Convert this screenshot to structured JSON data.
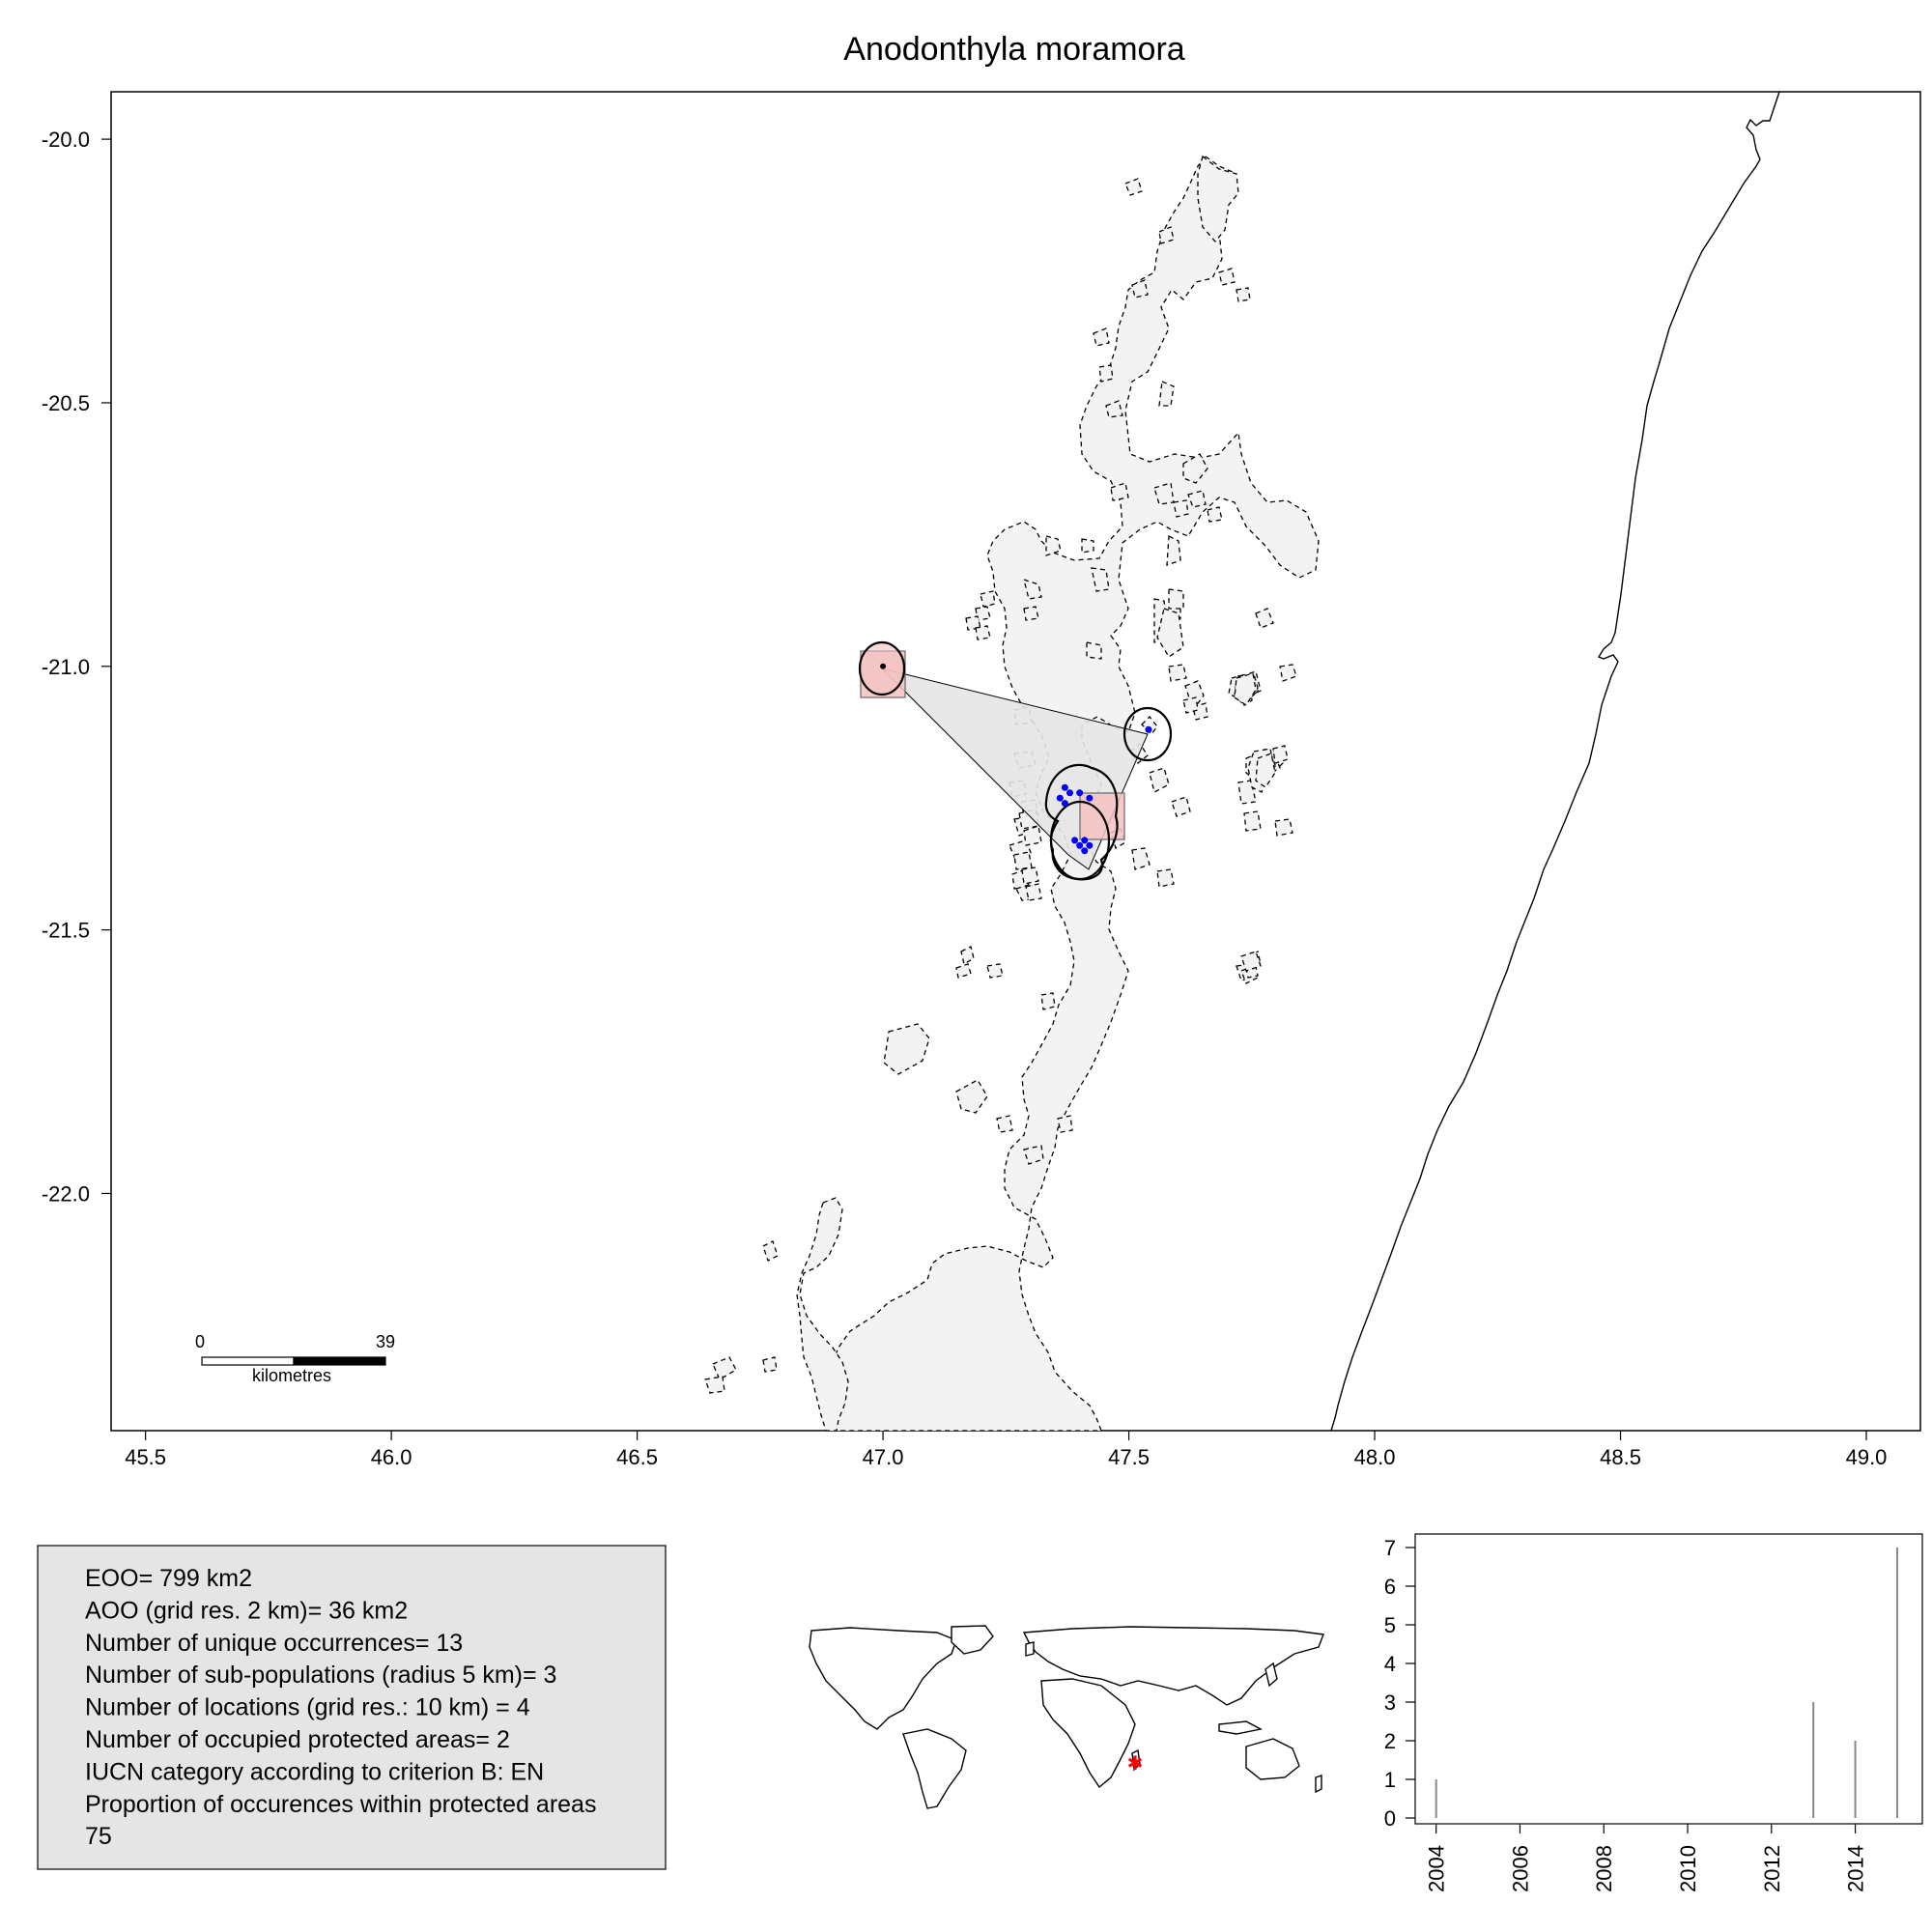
{
  "map": {
    "title": "Anodonthyla moramora",
    "x_ticks": [
      "45.5",
      "46.0",
      "46.5",
      "47.0",
      "47.5",
      "48.0",
      "48.5",
      "49.0"
    ],
    "x_tick_values": [
      45.5,
      46.0,
      46.5,
      47.0,
      47.5,
      48.0,
      48.5,
      49.0
    ],
    "y_ticks": [
      "-20.0",
      "-20.5",
      "-21.0",
      "-21.5",
      "-22.0"
    ],
    "y_tick_values": [
      -20.0,
      -20.5,
      -21.0,
      -21.5,
      -22.0
    ],
    "xlim": [
      45.43,
      49.11
    ],
    "ylim": [
      -22.45,
      -19.91
    ],
    "occurrences": [
      {
        "lon": 47.0,
        "lat": -21.0
      },
      {
        "lon": 47.54,
        "lat": -21.12
      },
      {
        "lon": 47.37,
        "lat": -21.23
      },
      {
        "lon": 47.36,
        "lat": -21.25
      },
      {
        "lon": 47.38,
        "lat": -21.24
      },
      {
        "lon": 47.4,
        "lat": -21.24
      },
      {
        "lon": 47.42,
        "lat": -21.25
      },
      {
        "lon": 47.37,
        "lat": -21.26
      },
      {
        "lon": 47.39,
        "lat": -21.33
      },
      {
        "lon": 47.41,
        "lat": -21.33
      },
      {
        "lon": 47.4,
        "lat": -21.34
      },
      {
        "lon": 47.42,
        "lat": -21.34
      },
      {
        "lon": 47.41,
        "lat": -21.35
      }
    ],
    "scale_bar": {
      "start_label": "0",
      "end_label": "39",
      "unit_label": "kilometres"
    }
  },
  "stats": {
    "lines": [
      "EOO= 799 km2",
      "AOO (grid res. 2 km)= 36 km2",
      "Number of unique occurrences= 13",
      "Number of sub-populations (radius 5 km)= 3",
      "Number of locations (grid res.: 10  km) = 4",
      "Number of occupied protected areas= 2",
      "IUCN category according to criterion B: EN",
      "Proportion of occurences within protected areas",
      "75"
    ]
  },
  "chart_data": {
    "type": "bar",
    "x": [
      2004,
      2013,
      2014,
      2015
    ],
    "values": [
      1,
      3,
      2,
      7
    ],
    "x_ticks": [
      "2004",
      "2006",
      "2008",
      "2010",
      "2012",
      "2014"
    ],
    "x_tick_values": [
      2004,
      2006,
      2008,
      2010,
      2012,
      2014
    ],
    "y_ticks": [
      "0",
      "1",
      "2",
      "3",
      "4",
      "5",
      "6",
      "7"
    ],
    "y_tick_values": [
      0,
      1,
      2,
      3,
      4,
      5,
      6,
      7
    ],
    "xlim": [
      2003.5,
      2015.6
    ],
    "ylim": [
      0,
      7.2
    ]
  },
  "colors": {
    "land_fill": "#f3f3f3",
    "hull_fill": "#e6e6e6",
    "cell_fill": "#f4c2c2",
    "occurrence": "#0000ff",
    "stats_bg": "#e5e5e5",
    "bar": "#888888",
    "world_marker": "#ff0000"
  },
  "icons": {
    "world_marker": "asterisk-icon"
  }
}
